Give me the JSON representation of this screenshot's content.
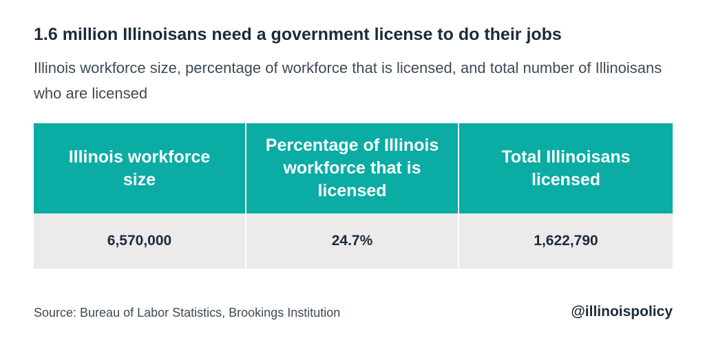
{
  "title": "1.6 million Illinoisans need a government license to do their jobs",
  "subtitle": "Illinois workforce size, percentage of workforce that is licensed, and total number of Illinoisans who are licensed",
  "colors": {
    "header_bg": "#0aaca4",
    "row_bg": "#ebebeb",
    "text_dark": "#1c2b3a"
  },
  "chart_data": {
    "type": "table",
    "columns": [
      "Illinois workforce size",
      "Percentage of Illinois workforce that is licensed",
      "Total Illinoisans licensed"
    ],
    "rows": [
      [
        "6,570,000",
        "24.7%",
        "1,622,790"
      ]
    ]
  },
  "footer": {
    "source": "Source: Bureau of Labor Statistics, Brookings Institution",
    "handle": "@illinoispolicy"
  }
}
